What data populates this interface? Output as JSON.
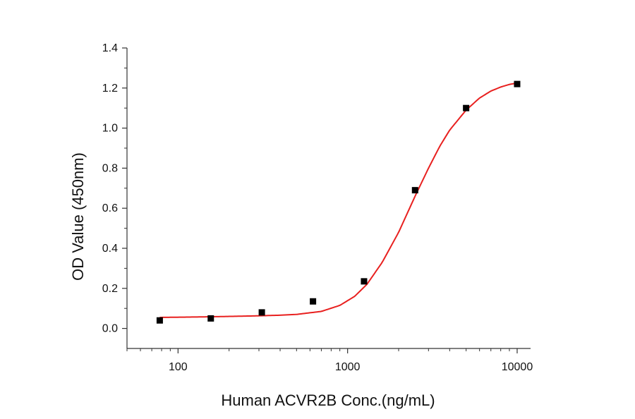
{
  "chart_data": {
    "type": "scatter",
    "title": "",
    "xlabel": "Human ACVR2B Conc.(ng/mL)",
    "ylabel": "OD Value (450nm)",
    "x_scale": "log",
    "xlim": [
      50,
      12000
    ],
    "ylim": [
      -0.1,
      1.4
    ],
    "x_ticks": [
      100,
      1000,
      10000
    ],
    "x_tick_labels": [
      "100",
      "1000",
      "10000"
    ],
    "y_ticks": [
      0.0,
      0.2,
      0.4,
      0.6,
      0.8,
      1.0,
      1.2,
      1.4
    ],
    "y_tick_labels": [
      "0.0",
      "0.2",
      "0.4",
      "0.6",
      "0.8",
      "1.0",
      "1.2",
      "1.4"
    ],
    "grid": false,
    "legend": "none",
    "series": [
      {
        "kind": "points",
        "color": "#000000",
        "x": [
          78,
          156,
          312,
          625,
          1250,
          2500,
          5000,
          10000
        ],
        "y": [
          0.04,
          0.05,
          0.08,
          0.135,
          0.235,
          0.69,
          1.1,
          1.22
        ]
      },
      {
        "kind": "fit-curve",
        "color": "#e8201f",
        "x": [
          78,
          100,
          150,
          200,
          300,
          400,
          500,
          700,
          900,
          1100,
          1300,
          1600,
          2000,
          2500,
          3000,
          3500,
          4000,
          5000,
          6000,
          7000,
          8000,
          9000,
          10000
        ],
        "y": [
          0.055,
          0.056,
          0.058,
          0.06,
          0.063,
          0.066,
          0.07,
          0.085,
          0.115,
          0.16,
          0.22,
          0.33,
          0.48,
          0.66,
          0.8,
          0.91,
          0.99,
          1.09,
          1.15,
          1.185,
          1.205,
          1.218,
          1.225
        ]
      }
    ]
  }
}
